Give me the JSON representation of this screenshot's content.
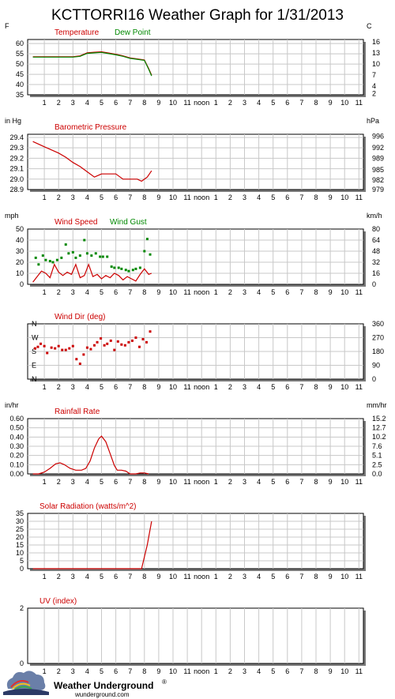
{
  "page_title": "KCTTORRI16 Weather Graph for 1/31/2013",
  "x_axis_labels": [
    "1",
    "2",
    "3",
    "4",
    "5",
    "6",
    "7",
    "8",
    "9",
    "10",
    "11",
    "noon",
    "1",
    "2",
    "3",
    "4",
    "5",
    "6",
    "7",
    "8",
    "9",
    "10",
    "11"
  ],
  "colors": {
    "red": "#cc0000",
    "green": "#008800",
    "frame": "#000000",
    "grid": "#c8c8c8"
  },
  "footer": {
    "brand": "Weather Underground",
    "brand_mark": "®",
    "site": "wunderground.com"
  },
  "chart_data": [
    {
      "type": "line",
      "id": "temperature",
      "left_unit": "F",
      "right_unit": "C",
      "titles": [
        {
          "text": "Temperature",
          "color": "#cc0000"
        },
        {
          "text": "Dew Point",
          "color": "#008800"
        }
      ],
      "ylim": [
        35,
        62
      ],
      "left_ticks": [
        "60",
        "55",
        "50",
        "45",
        "40",
        "35"
      ],
      "left_tick_values": [
        60,
        55,
        50,
        45,
        40,
        35
      ],
      "right_ticks": [
        "16",
        "13",
        "10",
        "7",
        "4",
        "2"
      ],
      "right_tick_values": [
        60.8,
        55.4,
        50,
        44.6,
        39.2,
        35.6
      ],
      "series": [
        {
          "name": "Temperature",
          "color": "#cc0000",
          "x": [
            0.2,
            1,
            2,
            3,
            3.5,
            4,
            4.5,
            5,
            5.5,
            6,
            6.5,
            7,
            7.5,
            8,
            8.3,
            8.5
          ],
          "y": [
            53.6,
            53.6,
            53.6,
            53.6,
            54,
            55.5,
            55.8,
            56,
            55.4,
            54.8,
            54,
            53,
            52.5,
            52,
            47.8,
            44.6
          ]
        },
        {
          "name": "Dew Point",
          "color": "#008800",
          "x": [
            0.2,
            1,
            2,
            3,
            3.5,
            4,
            4.5,
            5,
            5.5,
            6,
            6.5,
            7,
            7.5,
            8,
            8.3,
            8.5
          ],
          "y": [
            53.4,
            53.4,
            53.4,
            53.4,
            53.8,
            55.2,
            55.5,
            55.7,
            55.1,
            54.5,
            53.8,
            52.8,
            52.3,
            51.8,
            47.5,
            44.2
          ]
        }
      ]
    },
    {
      "type": "line",
      "id": "pressure",
      "left_unit": "in Hg",
      "right_unit": "hPa",
      "titles": [
        {
          "text": "Barometric Pressure",
          "color": "#cc0000"
        }
      ],
      "ylim": [
        28.9,
        29.43
      ],
      "left_ticks": [
        "29.4",
        "29.3",
        "29.2",
        "29.1",
        "29.0",
        "28.9"
      ],
      "left_tick_values": [
        29.4,
        29.3,
        29.2,
        29.1,
        29.0,
        28.9
      ],
      "right_ticks": [
        "996",
        "992",
        "989",
        "985",
        "982",
        "979"
      ],
      "right_tick_values": [
        29.41,
        29.3,
        29.2,
        29.09,
        28.99,
        28.9
      ],
      "series": [
        {
          "name": "Barometric Pressure",
          "color": "#cc0000",
          "x": [
            0.2,
            1,
            1.5,
            2,
            2.5,
            3,
            3.5,
            4,
            4.5,
            5,
            5.5,
            6,
            6.5,
            7,
            7.5,
            7.8,
            8.2,
            8.5
          ],
          "y": [
            29.36,
            29.31,
            29.28,
            29.25,
            29.21,
            29.16,
            29.12,
            29.07,
            29.02,
            29.05,
            29.05,
            29.05,
            29.0,
            29.0,
            29.0,
            28.98,
            29.02,
            29.08
          ]
        }
      ]
    },
    {
      "type": "line",
      "id": "wind-speed",
      "left_unit": "mph",
      "right_unit": "km/h",
      "titles": [
        {
          "text": "Wind Speed",
          "color": "#cc0000"
        },
        {
          "text": "Wind Gust",
          "color": "#008800"
        }
      ],
      "ylim": [
        0,
        50
      ],
      "left_ticks": [
        "50",
        "40",
        "30",
        "20",
        "10",
        "0"
      ],
      "left_tick_values": [
        50,
        40,
        30,
        20,
        10,
        0
      ],
      "right_ticks": [
        "80",
        "64",
        "48",
        "32",
        "16",
        "0"
      ],
      "right_tick_values": [
        50,
        40,
        30,
        20,
        10,
        0
      ],
      "series": [
        {
          "name": "Wind Speed",
          "color": "#cc0000",
          "x": [
            0.2,
            0.5,
            0.8,
            1.1,
            1.4,
            1.7,
            2,
            2.3,
            2.6,
            2.9,
            3.2,
            3.5,
            3.8,
            4.1,
            4.4,
            4.7,
            5,
            5.3,
            5.6,
            5.9,
            6.2,
            6.5,
            6.8,
            7.1,
            7.4,
            7.7,
            8,
            8.3,
            8.5
          ],
          "y": [
            2,
            7,
            12,
            10,
            6,
            18,
            11,
            8,
            11,
            9,
            18,
            6,
            8,
            18,
            7,
            9,
            5,
            8,
            6,
            10,
            8,
            4,
            7,
            5,
            3,
            9,
            14,
            9,
            10
          ]
        },
        {
          "name": "Wind Gust",
          "color": "#008800",
          "mode": "markers",
          "x": [
            0.4,
            0.6,
            0.9,
            1.1,
            1.4,
            1.6,
            1.9,
            2.2,
            2.5,
            2.7,
            3,
            3.2,
            3.5,
            3.8,
            4,
            4.3,
            4.6,
            4.9,
            5.1,
            5.4,
            5.7,
            5.9,
            6.2,
            6.4,
            6.7,
            6.9,
            7.2,
            7.4,
            7.7,
            8,
            8.2,
            8.4
          ],
          "y": [
            24,
            18,
            26,
            22,
            21,
            20,
            22,
            24,
            36,
            28,
            29,
            24,
            26,
            40,
            28,
            26,
            28,
            25,
            25,
            25,
            16,
            15,
            15,
            14,
            13,
            12,
            13,
            14,
            15,
            30,
            41,
            27
          ]
        }
      ]
    },
    {
      "type": "scatter",
      "id": "wind-dir",
      "left_unit": "",
      "right_unit": "",
      "titles": [
        {
          "text": "Wind Dir (deg)",
          "color": "#cc0000"
        }
      ],
      "ylim": [
        0,
        360
      ],
      "left_ticks": [
        "N",
        "W",
        "S",
        "E",
        "N"
      ],
      "left_tick_values": [
        360,
        270,
        180,
        90,
        0
      ],
      "left_tick_color": "#cc0000",
      "right_ticks": [
        "360",
        "270",
        "180",
        "90",
        "0"
      ],
      "right_tick_values": [
        360,
        270,
        180,
        90,
        0
      ],
      "series": [
        {
          "name": "Wind Dir",
          "color": "#cc0000",
          "mode": "markers",
          "x": [
            0.35,
            0.55,
            0.75,
            1,
            1.2,
            1.5,
            1.75,
            2,
            2.25,
            2.5,
            2.75,
            3,
            3.25,
            3.5,
            3.75,
            4,
            4.25,
            4.5,
            4.7,
            4.95,
            5.2,
            5.4,
            5.65,
            5.9,
            6.15,
            6.4,
            6.65,
            6.9,
            7.15,
            7.4,
            7.65,
            7.9,
            8.15,
            8.4
          ],
          "y": [
            200,
            210,
            230,
            215,
            170,
            205,
            200,
            215,
            190,
            190,
            200,
            215,
            130,
            100,
            160,
            205,
            195,
            220,
            240,
            265,
            220,
            230,
            250,
            190,
            245,
            225,
            220,
            240,
            250,
            270,
            210,
            260,
            240,
            310
          ]
        }
      ]
    },
    {
      "type": "area",
      "id": "rainfall",
      "left_unit": "in/hr",
      "right_unit": "mm/hr",
      "titles": [
        {
          "text": "Rainfall Rate",
          "color": "#cc0000"
        }
      ],
      "ylim": [
        0,
        0.6
      ],
      "left_ticks": [
        "0.60",
        "0.50",
        "0.40",
        "0.30",
        "0.20",
        "0.10",
        "0.00"
      ],
      "left_tick_values": [
        0.6,
        0.5,
        0.4,
        0.3,
        0.2,
        0.1,
        0
      ],
      "right_ticks": [
        "15.2",
        "12.7",
        "10.2",
        "7.6",
        "5.1",
        "2.5",
        "0.0"
      ],
      "right_tick_values": [
        0.598,
        0.5,
        0.402,
        0.299,
        0.201,
        0.098,
        0
      ],
      "series": [
        {
          "name": "Rainfall Rate",
          "color": "#cc0000",
          "x": [
            0.2,
            0.6,
            1,
            1.4,
            1.8,
            2.1,
            2.4,
            2.8,
            3.2,
            3.6,
            3.9,
            4.2,
            4.5,
            4.8,
            5.0,
            5.3,
            5.6,
            5.9,
            6.1,
            6.4,
            6.7,
            7.0,
            7.4,
            7.7,
            8.0,
            8.3
          ],
          "y": [
            0,
            0,
            0.02,
            0.06,
            0.11,
            0.12,
            0.1,
            0.06,
            0.04,
            0.04,
            0.06,
            0.14,
            0.28,
            0.38,
            0.41,
            0.35,
            0.22,
            0.09,
            0.04,
            0.04,
            0.03,
            0,
            0,
            0.01,
            0.01,
            0
          ]
        }
      ]
    },
    {
      "type": "line",
      "id": "solar",
      "left_unit": "",
      "right_unit": "",
      "titles": [
        {
          "text": "Solar Radiation (watts/m^2)",
          "color": "#cc0000"
        }
      ],
      "ylim": [
        0,
        35
      ],
      "left_ticks": [
        "35",
        "30",
        "25",
        "20",
        "15",
        "10",
        "5",
        "0"
      ],
      "left_tick_values": [
        35,
        30,
        25,
        20,
        15,
        10,
        5,
        0
      ],
      "right_ticks": [],
      "right_tick_values": [],
      "series": [
        {
          "name": "Solar Radiation",
          "color": "#cc0000",
          "x": [
            0.2,
            7.8,
            8.2,
            8.5
          ],
          "y": [
            0,
            0,
            15,
            30
          ]
        }
      ]
    },
    {
      "type": "line",
      "id": "uv",
      "left_unit": "",
      "right_unit": "",
      "titles": [
        {
          "text": "UV (index)",
          "color": "#cc0000"
        }
      ],
      "ylim": [
        0,
        2
      ],
      "left_ticks": [
        "2",
        "0"
      ],
      "left_tick_values": [
        2,
        0
      ],
      "right_ticks": [],
      "right_tick_values": [],
      "series": []
    }
  ]
}
